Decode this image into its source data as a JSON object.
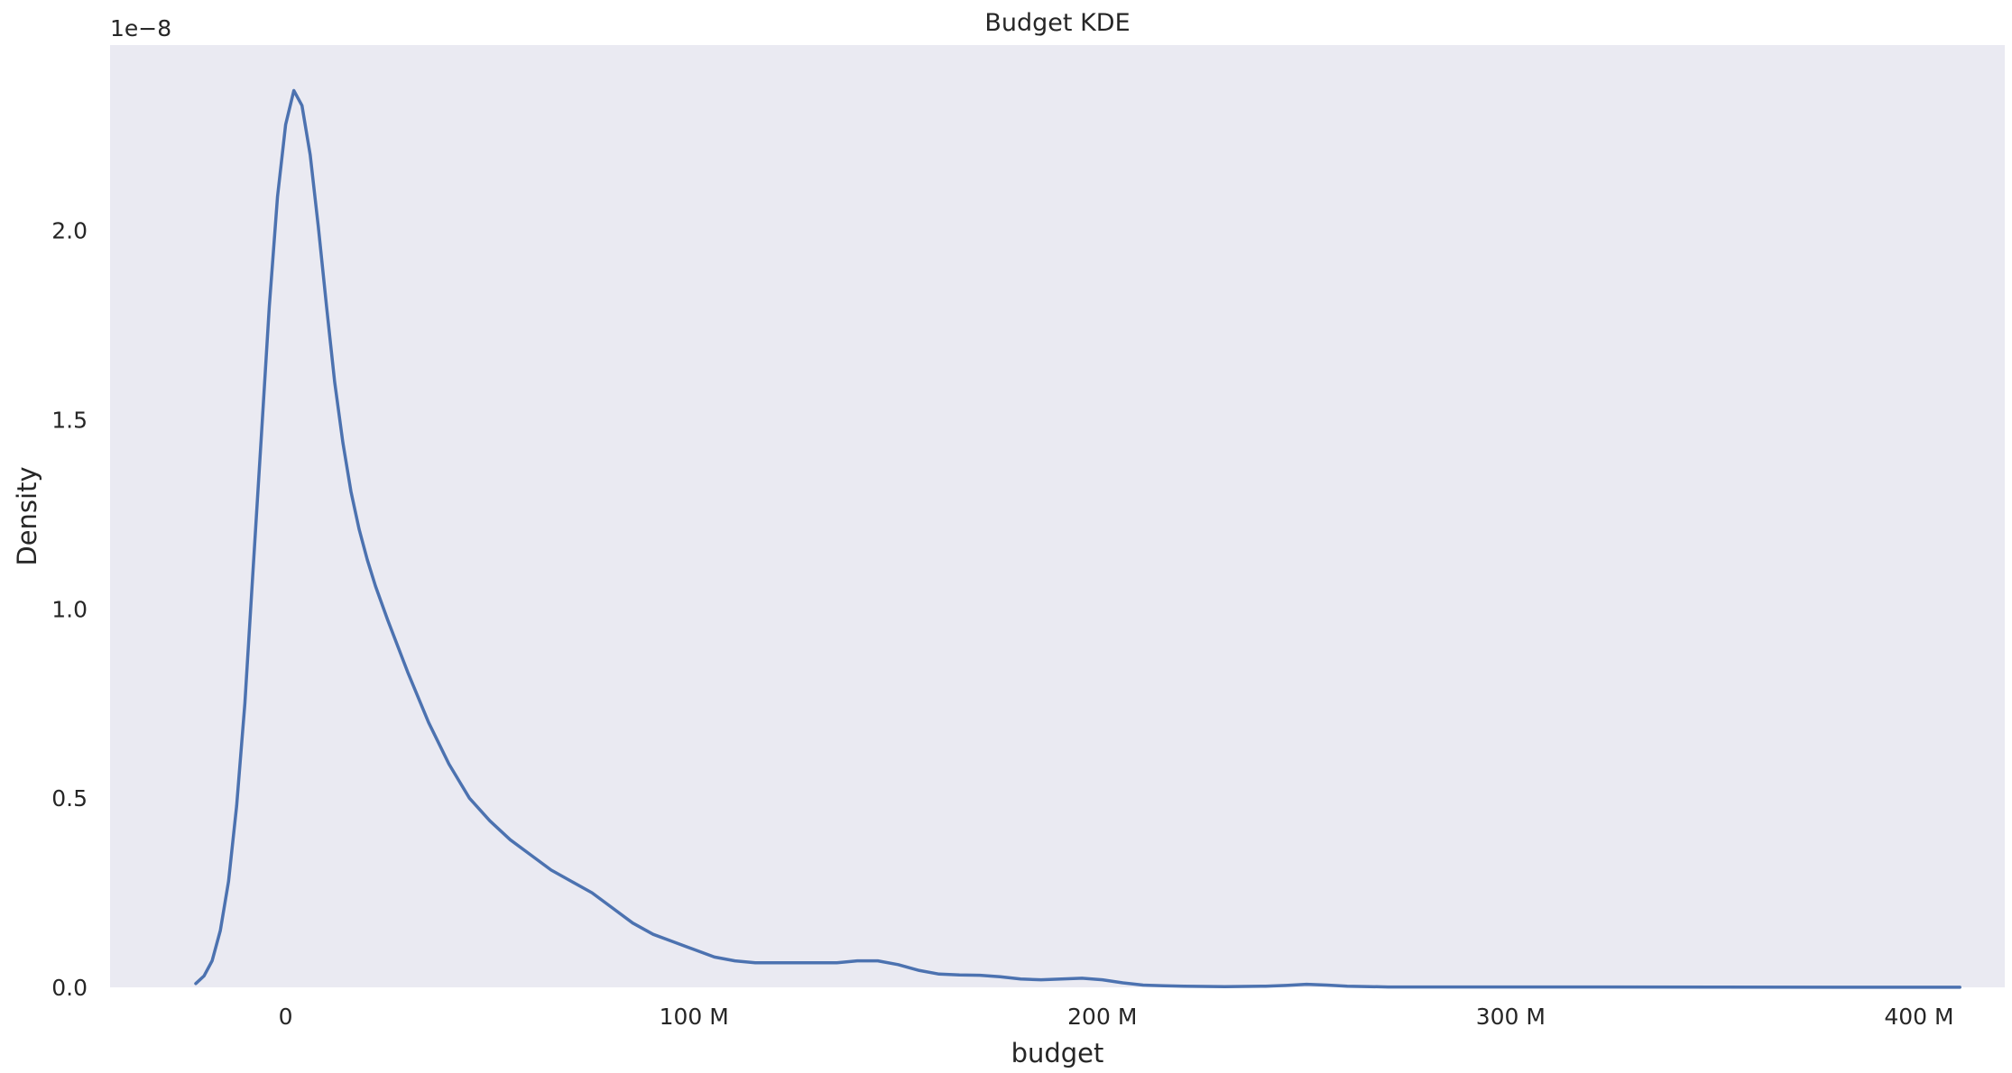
{
  "chart_data": {
    "type": "line",
    "title": "Budget KDE",
    "xlabel": "budget",
    "ylabel": "Density",
    "y_offset_label": "1e−8",
    "y_scale_multiplier": 1e-08,
    "grid": false,
    "legend": "none",
    "colors": {
      "plot_background": "#eaeaf2",
      "line": "#4c72b0",
      "text": "#262626"
    },
    "xlim": [
      -43,
      421
    ],
    "ylim": [
      0,
      2.49
    ],
    "x_unit": "M",
    "xticks": [
      {
        "value": 0,
        "label": "0"
      },
      {
        "value": 100,
        "label": "100 M"
      },
      {
        "value": 200,
        "label": "200 M"
      },
      {
        "value": 300,
        "label": "300 M"
      },
      {
        "value": 400,
        "label": "400 M"
      }
    ],
    "yticks": [
      {
        "value": 0.0,
        "label": "0.0"
      },
      {
        "value": 0.5,
        "label": "0.5"
      },
      {
        "value": 1.0,
        "label": "1.0"
      },
      {
        "value": 1.5,
        "label": "1.5"
      },
      {
        "value": 2.0,
        "label": "2.0"
      }
    ],
    "series": [
      {
        "x": [
          -22,
          -20,
          -18,
          -16,
          -14,
          -12,
          -10,
          -8,
          -6,
          -4,
          -2,
          0,
          2,
          4,
          6,
          8,
          10,
          12,
          14,
          16,
          18,
          20,
          22,
          25,
          30,
          35,
          40,
          45,
          50,
          55,
          60,
          65,
          70,
          75,
          80,
          85,
          90,
          95,
          100,
          105,
          110,
          115,
          120,
          125,
          130,
          135,
          140,
          145,
          150,
          155,
          160,
          165,
          170,
          175,
          180,
          185,
          190,
          195,
          200,
          205,
          210,
          215,
          220,
          230,
          240,
          245,
          250,
          255,
          260,
          270,
          280,
          300,
          320,
          350,
          380,
          410
        ],
        "y": [
          0.01,
          0.03,
          0.07,
          0.15,
          0.28,
          0.48,
          0.75,
          1.1,
          1.45,
          1.8,
          2.09,
          2.28,
          2.37,
          2.33,
          2.2,
          2.01,
          1.8,
          1.6,
          1.44,
          1.31,
          1.21,
          1.13,
          1.06,
          0.97,
          0.83,
          0.7,
          0.59,
          0.5,
          0.44,
          0.39,
          0.35,
          0.31,
          0.28,
          0.25,
          0.21,
          0.17,
          0.14,
          0.12,
          0.1,
          0.08,
          0.07,
          0.065,
          0.065,
          0.065,
          0.065,
          0.065,
          0.07,
          0.07,
          0.06,
          0.045,
          0.035,
          0.033,
          0.032,
          0.028,
          0.022,
          0.02,
          0.022,
          0.024,
          0.02,
          0.012,
          0.006,
          0.004,
          0.003,
          0.002,
          0.003,
          0.005,
          0.008,
          0.006,
          0.003,
          0.001,
          0.001,
          0.001,
          0.001,
          0.0005,
          0.0003,
          0.0002
        ]
      }
    ]
  }
}
